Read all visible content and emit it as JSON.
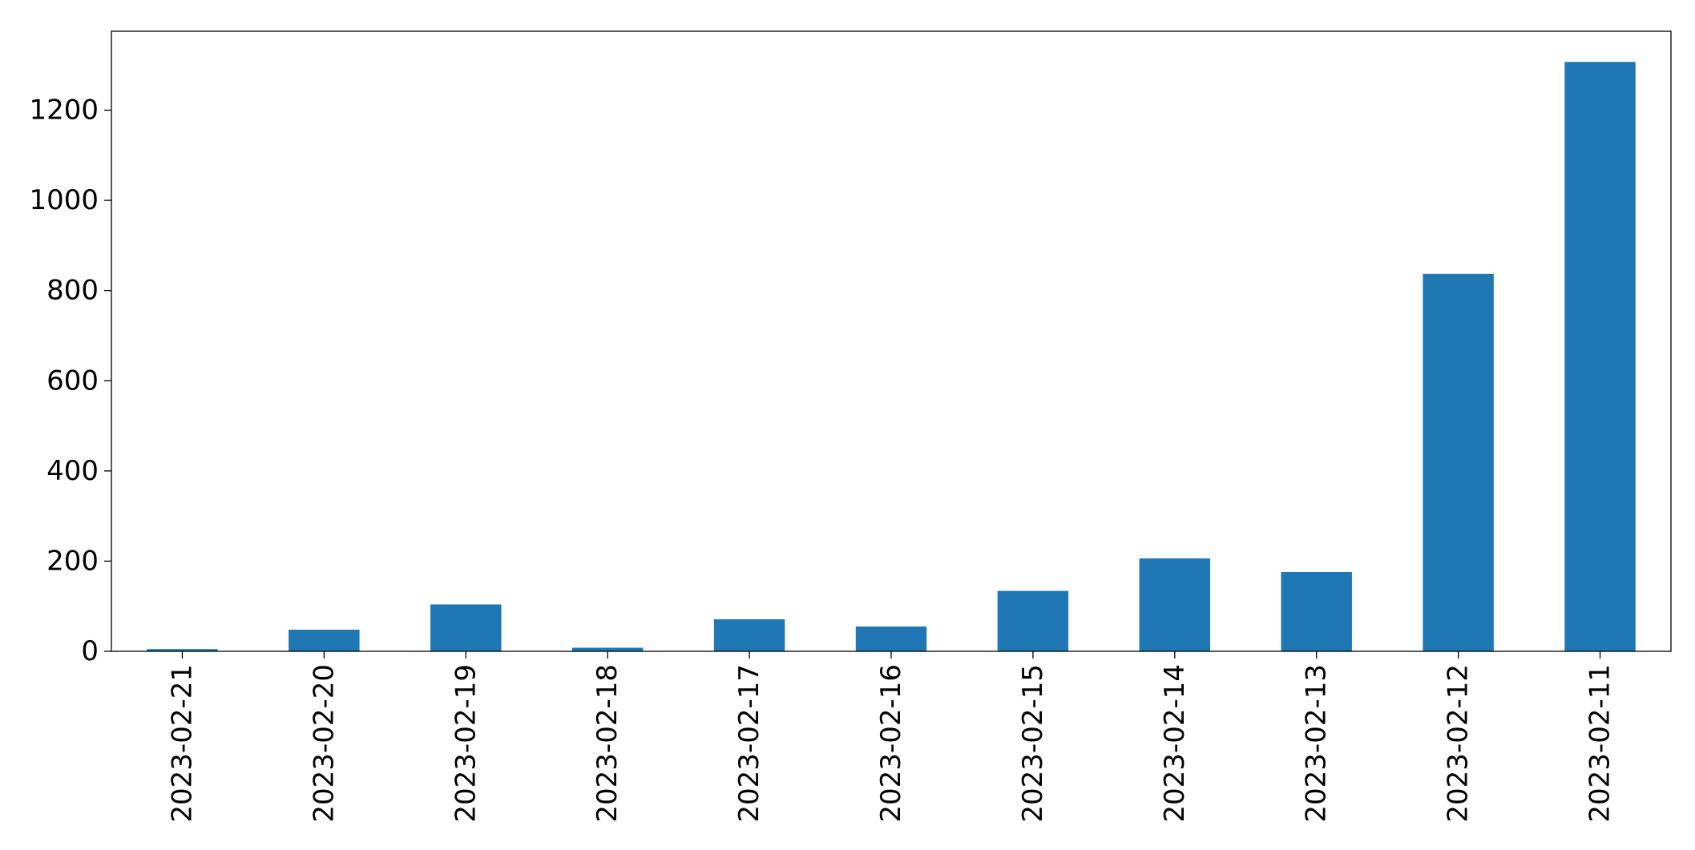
{
  "chart_data": {
    "type": "bar",
    "title": "",
    "xlabel": "",
    "ylabel": "",
    "categories": [
      "2023-02-21",
      "2023-02-20",
      "2023-02-19",
      "2023-02-18",
      "2023-02-17",
      "2023-02-16",
      "2023-02-15",
      "2023-02-14",
      "2023-02-13",
      "2023-02-12",
      "2023-02-11"
    ],
    "values": [
      5,
      48,
      104,
      8,
      71,
      55,
      134,
      206,
      176,
      837,
      1307
    ],
    "ylim": [
      0,
      1375
    ],
    "yticks": [
      0,
      200,
      400,
      600,
      800,
      1000,
      1200
    ],
    "ytick_labels": [
      "0",
      "200",
      "400",
      "600",
      "800",
      "1000",
      "1200"
    ],
    "bar_color": "#1f77b4",
    "grid": false,
    "legend": "none"
  }
}
